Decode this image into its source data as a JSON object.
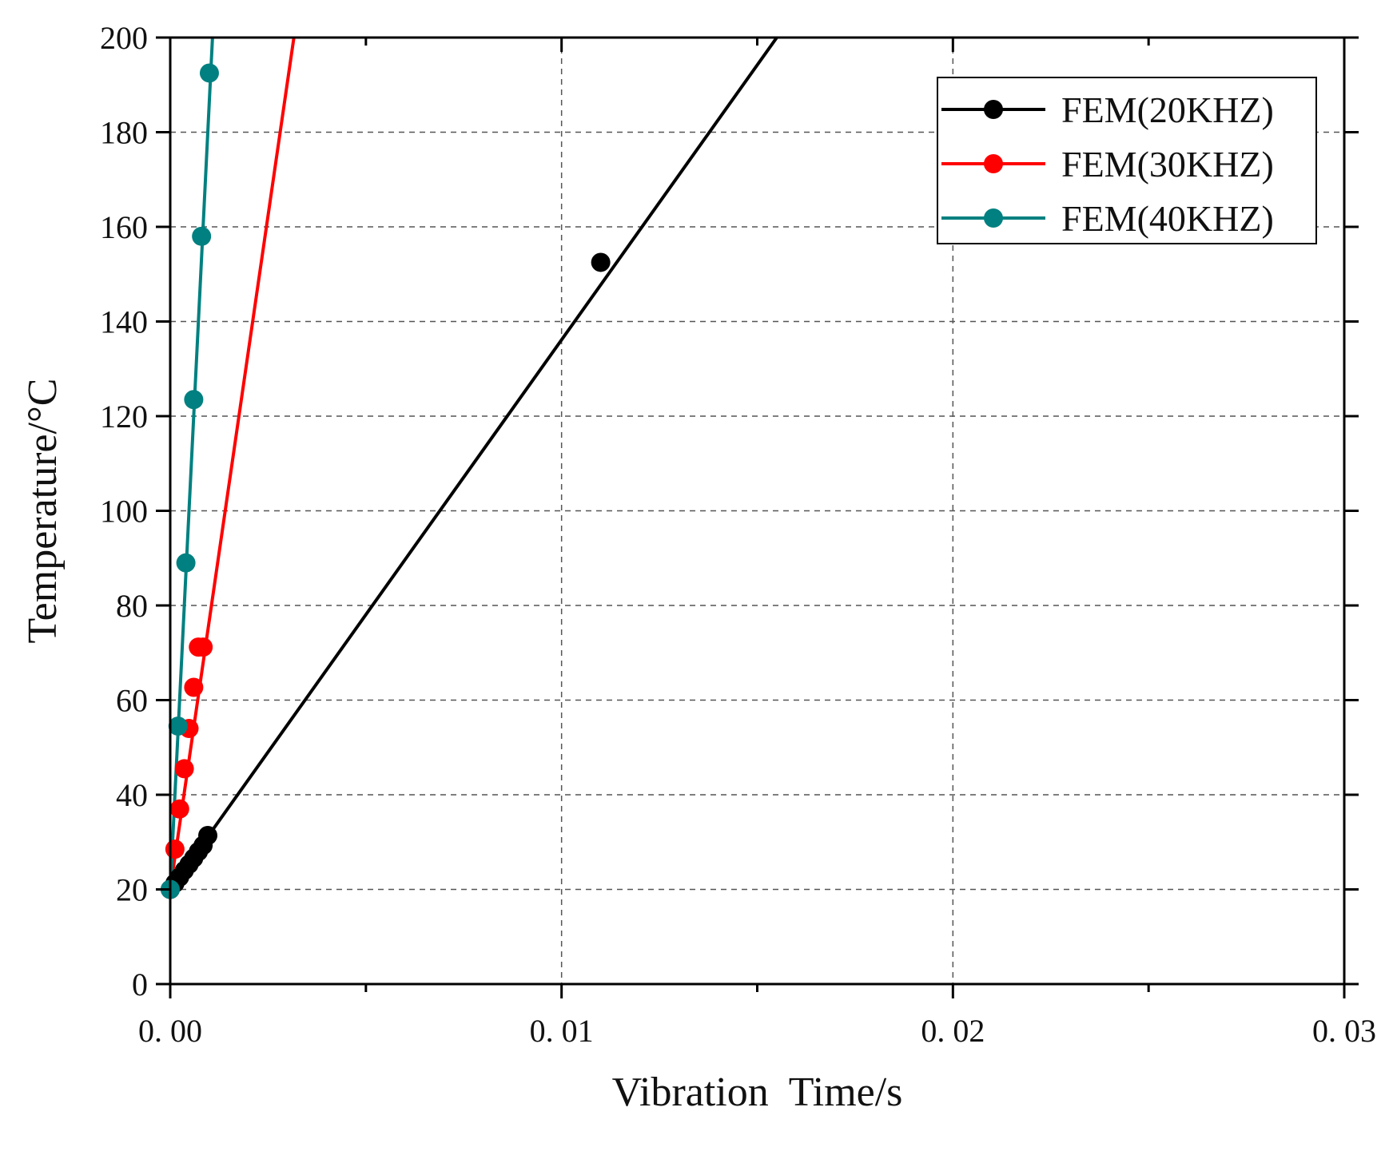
{
  "chart_data": {
    "type": "line",
    "title": "",
    "xlabel": "Vibration  Time/s",
    "ylabel": "Temperature/°C",
    "xlim": [
      0,
      0.03
    ],
    "ylim": [
      0,
      200
    ],
    "xticks": [
      0,
      0.01,
      0.02,
      0.03
    ],
    "xtick_labels": [
      "0. 00",
      "0. 01",
      "0. 02",
      "0. 03"
    ],
    "yticks": [
      0,
      20,
      40,
      60,
      80,
      100,
      120,
      140,
      160,
      180,
      200
    ],
    "ytick_labels": [
      "0",
      "20",
      "40",
      "60",
      "80",
      "100",
      "120",
      "140",
      "160",
      "180",
      "200"
    ],
    "grid": true,
    "legend_position": "top-right",
    "series": [
      {
        "name": "FEM(20KHZ)",
        "color": "#000000",
        "line": {
          "x": [
            0,
            0.0155
          ],
          "y": [
            20,
            200
          ]
        },
        "markers": {
          "x": [
            0,
            0.00012,
            0.00024,
            0.00036,
            0.00048,
            0.0006,
            0.00072,
            0.00084,
            0.00096,
            0.011
          ],
          "y": [
            20,
            21.3,
            22.6,
            24,
            25.3,
            26.6,
            28,
            29.3,
            31.4,
            152.5
          ]
        }
      },
      {
        "name": "FEM(30KHZ)",
        "color": "#ff0000",
        "line": {
          "x": [
            0,
            0.00316
          ],
          "y": [
            20,
            200
          ]
        },
        "markers": {
          "x": [
            0.00012,
            0.00024,
            0.00036,
            0.00048,
            0.0006,
            0.00072,
            0.00084
          ],
          "y": [
            28.5,
            37,
            45.5,
            54,
            62.7,
            71.2,
            71.2
          ]
        }
      },
      {
        "name": "FEM(40KHZ)",
        "color": "#008080",
        "line": {
          "x": [
            0,
            0.00108
          ],
          "y": [
            20,
            200
          ]
        },
        "markers": {
          "x": [
            0,
            0.0002,
            0.0004,
            0.0006,
            0.0008,
            0.001
          ],
          "y": [
            20,
            54.5,
            89,
            123.5,
            158,
            192.5
          ]
        }
      }
    ]
  }
}
